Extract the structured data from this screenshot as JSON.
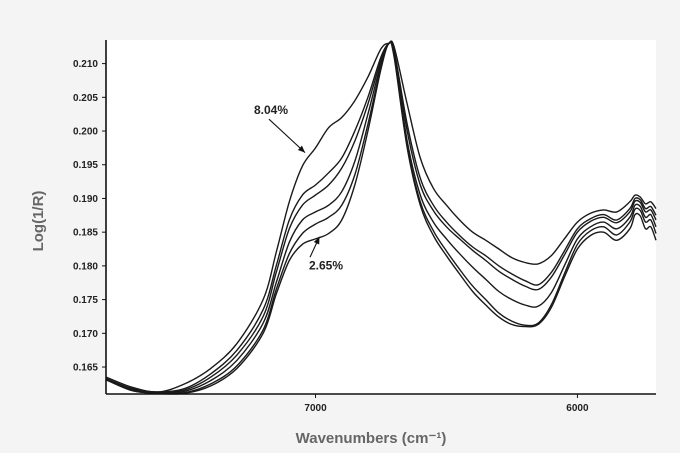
{
  "chart_data": {
    "type": "line",
    "title": "",
    "xlabel": "Wavenumbers (cm⁻¹)",
    "ylabel": "Log(1/R)",
    "xlim": [
      7800,
      5700
    ],
    "ylim": [
      0.161,
      0.2135
    ],
    "x_reversed": true,
    "grid": false,
    "x_ticks": [
      {
        "value": 7000,
        "label": "7000"
      },
      {
        "value": 6000,
        "label": "6000"
      }
    ],
    "y_ticks": [
      {
        "value": 0.165,
        "label": "0.165"
      },
      {
        "value": 0.17,
        "label": "0.170"
      },
      {
        "value": 0.175,
        "label": "0.175"
      },
      {
        "value": 0.18,
        "label": "0.180"
      },
      {
        "value": 0.185,
        "label": "0.185"
      },
      {
        "value": 0.19,
        "label": "0.190"
      },
      {
        "value": 0.195,
        "label": "0.195"
      },
      {
        "value": 0.2,
        "label": "0.200"
      },
      {
        "value": 0.205,
        "label": "0.205"
      },
      {
        "value": 0.21,
        "label": "0.210"
      }
    ],
    "x": [
      7800,
      7700,
      7600,
      7500,
      7400,
      7300,
      7200,
      7150,
      7100,
      7050,
      7000,
      6950,
      6900,
      6850,
      6800,
      6750,
      6720,
      6700,
      6650,
      6600,
      6550,
      6500,
      6450,
      6400,
      6350,
      6300,
      6250,
      6200,
      6150,
      6100,
      6050,
      6000,
      5950,
      5900,
      5850,
      5800,
      5780,
      5760,
      5740,
      5720,
      5700
    ],
    "series": [
      {
        "values": [
          0.1635,
          0.162,
          0.1613,
          0.1625,
          0.1648,
          0.1685,
          0.175,
          0.182,
          0.1895,
          0.1948,
          0.1975,
          0.2005,
          0.202,
          0.2045,
          0.208,
          0.2122,
          0.213,
          0.2125,
          0.204,
          0.196,
          0.1915,
          0.189,
          0.1868,
          0.185,
          0.1838,
          0.1825,
          0.1812,
          0.1805,
          0.1803,
          0.1815,
          0.184,
          0.1865,
          0.1878,
          0.1883,
          0.188,
          0.1895,
          0.1905,
          0.1902,
          0.1892,
          0.1895,
          0.1885
        ]
      },
      {
        "values": [
          0.1633,
          0.1618,
          0.1613,
          0.1618,
          0.164,
          0.1675,
          0.1735,
          0.18,
          0.1868,
          0.1905,
          0.192,
          0.1938,
          0.196,
          0.2,
          0.205,
          0.211,
          0.213,
          0.212,
          0.201,
          0.193,
          0.189,
          0.1865,
          0.1845,
          0.1828,
          0.1815,
          0.18,
          0.1788,
          0.1778,
          0.1772,
          0.179,
          0.1822,
          0.1855,
          0.187,
          0.1876,
          0.1868,
          0.1885,
          0.19,
          0.1898,
          0.1885,
          0.1888,
          0.1875
        ]
      },
      {
        "values": [
          0.1633,
          0.1617,
          0.1612,
          0.1616,
          0.1635,
          0.1668,
          0.1725,
          0.179,
          0.1855,
          0.189,
          0.1905,
          0.192,
          0.1945,
          0.1985,
          0.204,
          0.2105,
          0.213,
          0.2118,
          0.2,
          0.192,
          0.1882,
          0.1858,
          0.184,
          0.1823,
          0.1808,
          0.1792,
          0.178,
          0.177,
          0.1765,
          0.1783,
          0.1816,
          0.185,
          0.1866,
          0.1872,
          0.1864,
          0.188,
          0.1896,
          0.1894,
          0.188,
          0.1883,
          0.1868
        ]
      },
      {
        "values": [
          0.1632,
          0.1616,
          0.1611,
          0.1614,
          0.163,
          0.166,
          0.1715,
          0.1775,
          0.1835,
          0.1868,
          0.188,
          0.189,
          0.191,
          0.1955,
          0.2025,
          0.21,
          0.213,
          0.2115,
          0.1985,
          0.1905,
          0.1865,
          0.184,
          0.1818,
          0.1798,
          0.178,
          0.1762,
          0.175,
          0.1742,
          0.174,
          0.176,
          0.18,
          0.184,
          0.1858,
          0.1865,
          0.1855,
          0.1872,
          0.189,
          0.1888,
          0.1872,
          0.1876,
          0.1858
        ]
      },
      {
        "values": [
          0.1632,
          0.1615,
          0.1611,
          0.1612,
          0.1625,
          0.1652,
          0.1705,
          0.1765,
          0.1818,
          0.1848,
          0.1862,
          0.1872,
          0.189,
          0.1935,
          0.201,
          0.2095,
          0.213,
          0.2112,
          0.1978,
          0.1895,
          0.1852,
          0.1822,
          0.1795,
          0.177,
          0.175,
          0.173,
          0.1718,
          0.1712,
          0.1715,
          0.1742,
          0.1788,
          0.1832,
          0.1852,
          0.1858,
          0.1846,
          0.1865,
          0.1884,
          0.1882,
          0.1865,
          0.1868,
          0.1848
        ]
      },
      {
        "values": [
          0.1631,
          0.1615,
          0.1611,
          0.1611,
          0.1622,
          0.1648,
          0.17,
          0.1758,
          0.1808,
          0.1832,
          0.184,
          0.1848,
          0.1868,
          0.192,
          0.2,
          0.2092,
          0.213,
          0.211,
          0.1975,
          0.189,
          0.1845,
          0.1815,
          0.1788,
          0.1762,
          0.1742,
          0.1724,
          0.1713,
          0.171,
          0.1713,
          0.1738,
          0.1783,
          0.1825,
          0.1845,
          0.185,
          0.1838,
          0.1855,
          0.1876,
          0.1874,
          0.1855,
          0.1858,
          0.1838
        ]
      }
    ],
    "annotations": [
      {
        "text": "8.04%",
        "x": 7170,
        "y": 0.2025,
        "arrow_to": {
          "x": 7040,
          "y": 0.1968
        }
      },
      {
        "text": "2.65%",
        "x": 6960,
        "y": 0.1795,
        "arrow_to": {
          "x": 6985,
          "y": 0.1843
        }
      }
    ]
  }
}
